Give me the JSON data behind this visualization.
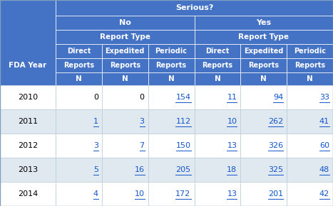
{
  "title": "Serious?",
  "header_bg": "#4472C4",
  "header_text": "#FFFFFF",
  "link_color": "#1155CC",
  "col0_header": "FDA Year",
  "years": [
    "2010",
    "2011",
    "2012",
    "2013",
    "2014"
  ],
  "data": [
    [
      0,
      0,
      154,
      11,
      94,
      33
    ],
    [
      1,
      3,
      112,
      10,
      262,
      41
    ],
    [
      3,
      7,
      150,
      13,
      326,
      60
    ],
    [
      5,
      16,
      205,
      18,
      325,
      48
    ],
    [
      4,
      10,
      172,
      13,
      201,
      42
    ]
  ],
  "is_link": [
    [
      false,
      false,
      true,
      true,
      true,
      true
    ],
    [
      true,
      true,
      true,
      true,
      true,
      true
    ],
    [
      true,
      true,
      true,
      true,
      true,
      true
    ],
    [
      true,
      true,
      true,
      true,
      true,
      true
    ],
    [
      true,
      true,
      true,
      true,
      true,
      true
    ]
  ],
  "row_colors": [
    "#FFFFFF",
    "#E0E8F0",
    "#FFFFFF",
    "#E0E8F0",
    "#FFFFFF"
  ],
  "figsize": [
    4.67,
    2.9
  ],
  "dpi": 100
}
